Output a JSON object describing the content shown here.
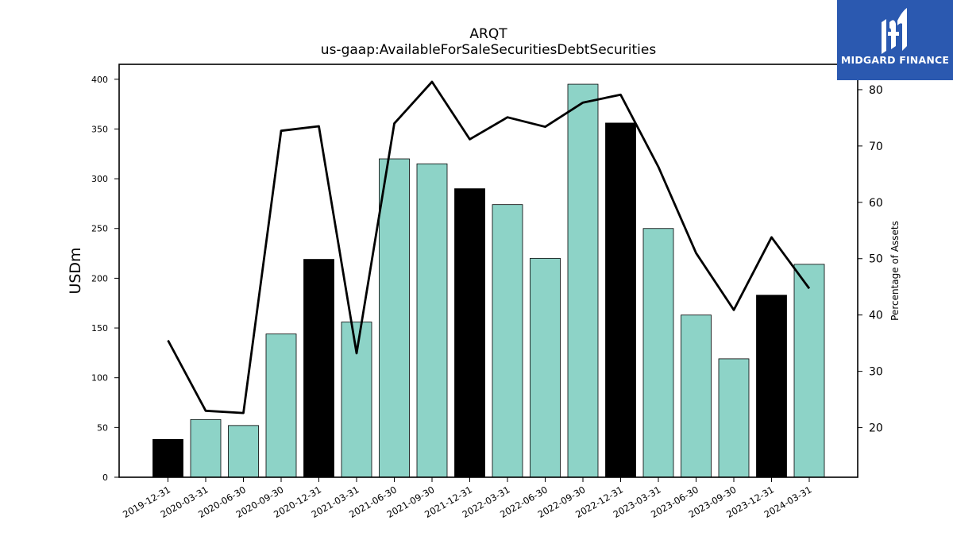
{
  "chart_data": {
    "type": "bar",
    "title": "ARQT",
    "subtitle": "us-gaap:AvailableForSaleSecuritiesDebtSecurities",
    "ylabel": "USDm",
    "y2label": "Percentage of Assets",
    "ylim": [
      0,
      415
    ],
    "y2lim": [
      11.2,
      84.5
    ],
    "yticks": [
      0,
      50,
      100,
      150,
      200,
      250,
      300,
      350,
      400
    ],
    "y2ticks": [
      20,
      30,
      40,
      50,
      60,
      70,
      80
    ],
    "grid": false,
    "categories": [
      "2019-12-31",
      "2020-03-31",
      "2020-06-30",
      "2020-09-30",
      "2020-12-31",
      "2021-03-31",
      "2021-06-30",
      "2021-09-30",
      "2021-12-31",
      "2022-03-31",
      "2022-06-30",
      "2022-09-30",
      "2022-12-31",
      "2023-03-31",
      "2023-06-30",
      "2023-09-30",
      "2023-12-31",
      "2024-03-31"
    ],
    "series": [
      {
        "type": "bar",
        "axis": "left",
        "values": [
          38,
          58,
          52,
          144,
          219,
          156,
          320,
          315,
          290,
          274,
          220,
          395,
          356,
          250,
          163,
          119,
          183,
          214
        ],
        "highlight": [
          true,
          false,
          false,
          false,
          true,
          false,
          false,
          false,
          true,
          false,
          false,
          false,
          true,
          false,
          false,
          false,
          true,
          false
        ]
      },
      {
        "type": "line",
        "axis": "right",
        "values": [
          35.5,
          23.0,
          22.6,
          72.7,
          73.5,
          33.2,
          74.0,
          81.4,
          71.2,
          75.1,
          73.4,
          77.7,
          79.1,
          66.3,
          51.0,
          40.9,
          53.8,
          44.7
        ]
      }
    ],
    "colors": {
      "bar": "#8dd3c7",
      "bar_highlight": "#000000",
      "line": "#000000",
      "edge": "#000000"
    }
  },
  "logo": {
    "text": "MIDGARD FINANCE",
    "background": "#2b59b0"
  }
}
